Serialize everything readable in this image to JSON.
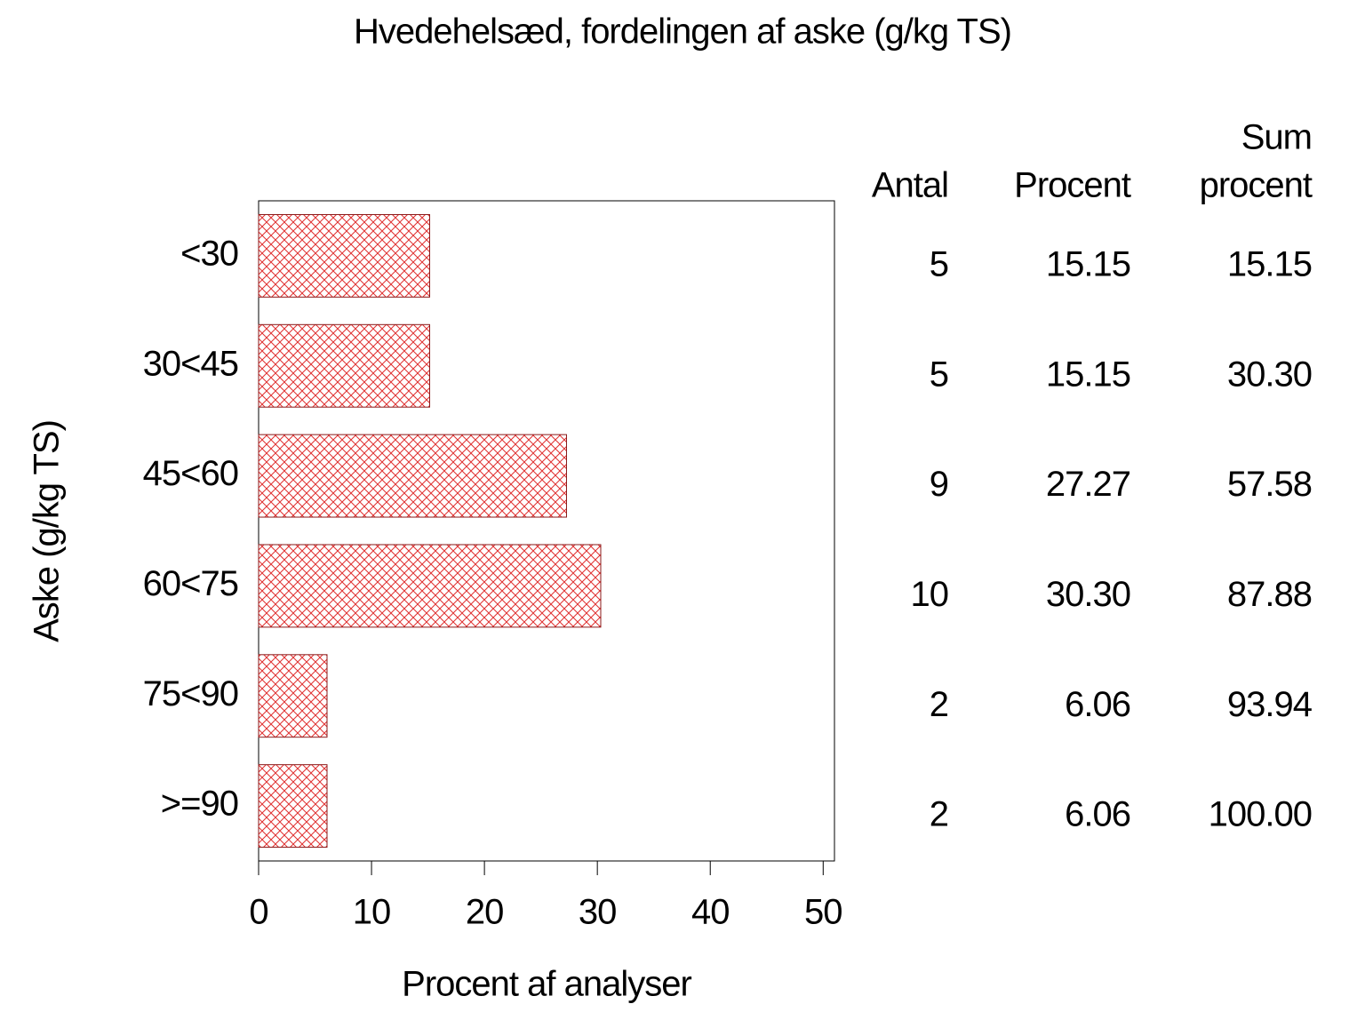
{
  "chart_data": {
    "type": "bar",
    "orientation": "horizontal",
    "title": "Hvedehelsæd, fordelingen af aske (g/kg TS)",
    "xlabel": "Procent af analyser",
    "ylabel": "Aske (g/kg TS)",
    "categories": [
      "<30",
      "30<45",
      "45<60",
      "60<75",
      "75<90",
      ">=90"
    ],
    "values": [
      15.15,
      15.15,
      27.27,
      30.3,
      6.06,
      6.06
    ],
    "value_labels": [
      "15.15",
      "15.15",
      "27.27",
      "30.30",
      "6.06",
      "6.06"
    ],
    "color": "#e03030",
    "xlim": [
      0,
      51
    ],
    "xticks": [
      0,
      10,
      20,
      30,
      40,
      50
    ],
    "grid": false,
    "table": {
      "headers": [
        [
          "Antal"
        ],
        [
          "Procent"
        ],
        [
          "Sum",
          "procent"
        ]
      ],
      "counts": [
        5,
        5,
        9,
        10,
        2,
        2
      ],
      "cumulative": [
        15.15,
        30.3,
        57.58,
        87.88,
        93.94,
        100.0
      ],
      "cumulative_labels": [
        "15.15",
        "30.30",
        "57.58",
        "87.88",
        "93.94",
        "100.00"
      ]
    }
  }
}
